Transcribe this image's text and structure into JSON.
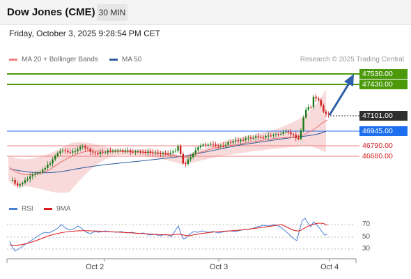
{
  "header": {
    "title": "Dow Jones (CME)",
    "timeframe": "30 MIN"
  },
  "timestamp": "Friday, October 3, 2025 9:28:54 PM CET",
  "legend": {
    "ma20_label": "MA 20 + Bollinger Bands",
    "ma20_color": "#f08080",
    "ma50_label": "MA 50",
    "ma50_color": "#2f5c9c"
  },
  "credit": "Research © 2025 Trading Central",
  "levels": {
    "r2": "47530.00",
    "r1": "47430.00",
    "last": "47101.00",
    "pivot": "46945.00",
    "s1": "46790.00",
    "s2": "46680.00"
  },
  "rsi": {
    "rsi_label": "RSI",
    "rsi_color": "#4a7fd6",
    "ma_label": "9MA",
    "ma_color": "#e01818",
    "levels": [
      "70",
      "50",
      "30"
    ]
  },
  "xaxis": [
    "Oct 2",
    "Oct 3",
    "Oct 4"
  ],
  "colors": {
    "up": "#1a7a1a",
    "down": "#d11c1c",
    "resistance": "#4c9a0c",
    "pivot": "#1e6ff0",
    "support": "#f08080"
  }
}
